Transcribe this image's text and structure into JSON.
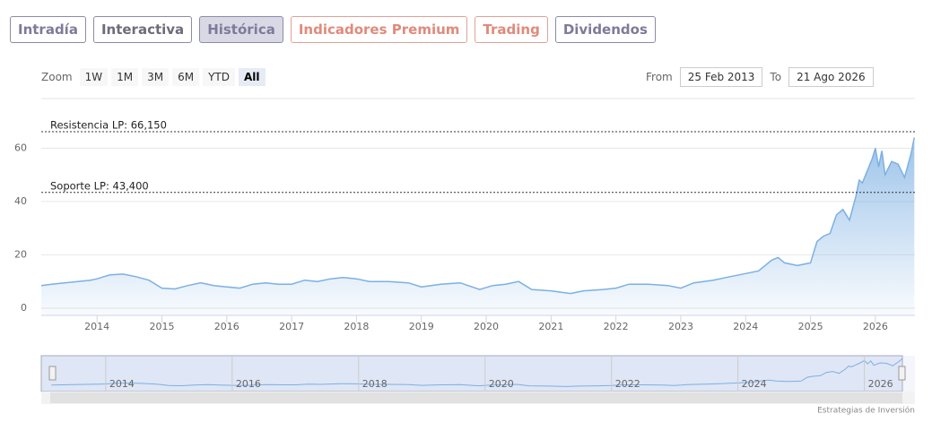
{
  "tabs": [
    "Intradía",
    "Interactiva",
    "Histórica",
    "Indicadores Premium",
    "Trading",
    "Dividendos"
  ],
  "zoom": {
    "label": "Zoom",
    "buttons": [
      "1W",
      "1M",
      "3M",
      "6M",
      "YTD",
      "All"
    ]
  },
  "range": {
    "from_label": "From",
    "from": "25 Feb 2013",
    "to_label": "To",
    "to": "21 Ago 2026"
  },
  "credits": "Estrategias de Inversión",
  "chart_data": {
    "type": "area",
    "x": [
      2013.14,
      2013.3,
      2013.5,
      2013.7,
      2013.9,
      2014.0,
      2014.2,
      2014.4,
      2014.6,
      2014.8,
      2015.0,
      2015.2,
      2015.4,
      2015.6,
      2015.8,
      2016.0,
      2016.2,
      2016.4,
      2016.6,
      2016.8,
      2017.0,
      2017.2,
      2017.4,
      2017.6,
      2017.8,
      2018.0,
      2018.2,
      2018.5,
      2018.8,
      2019.0,
      2019.3,
      2019.6,
      2019.9,
      2020.1,
      2020.3,
      2020.5,
      2020.7,
      2021.0,
      2021.3,
      2021.5,
      2021.8,
      2022.0,
      2022.2,
      2022.5,
      2022.8,
      2023.0,
      2023.2,
      2023.5,
      2023.7,
      2024.0,
      2024.2,
      2024.4,
      2024.5,
      2024.6,
      2024.8,
      2025.0,
      2025.1,
      2025.2,
      2025.3,
      2025.4,
      2025.5,
      2025.6,
      2025.7,
      2025.75,
      2025.8,
      2025.85,
      2025.95,
      2026.0,
      2026.05,
      2026.1,
      2026.15,
      2026.25,
      2026.35,
      2026.45,
      2026.55,
      2026.6
    ],
    "series": [
      {
        "color": "#7cb0e3",
        "values": [
          8.5,
          9,
          9.5,
          10,
          10.5,
          11,
          12.5,
          12.8,
          11.8,
          10.5,
          7.5,
          7.2,
          8.5,
          9.5,
          8.5,
          8,
          7.5,
          9,
          9.5,
          9,
          9,
          10.5,
          10,
          11,
          11.5,
          11,
          10,
          10,
          9.5,
          8,
          9,
          9.5,
          7,
          8.5,
          9,
          10,
          7,
          6.5,
          5.5,
          6.5,
          7,
          7.5,
          9,
          9,
          8.5,
          7.5,
          9.5,
          10.5,
          11.5,
          13,
          14,
          18,
          19,
          17,
          16,
          17,
          25,
          27,
          28,
          35,
          37,
          33,
          42,
          48,
          47,
          50,
          56,
          60,
          53,
          59,
          50,
          55,
          54,
          49,
          58,
          64
        ]
      }
    ],
    "xlim": [
      2013.14,
      2026.61
    ],
    "xticks": [
      2014,
      2015,
      2016,
      2017,
      2018,
      2019,
      2020,
      2021,
      2022,
      2023,
      2024,
      2025,
      2026
    ],
    "ylim": [
      -2.7,
      78.6
    ],
    "yticks": [
      0,
      20,
      40,
      60
    ],
    "grid": true,
    "plot_lines": [
      {
        "value": 66.15,
        "label": "Resistencia LP: 66,150"
      },
      {
        "value": 43.4,
        "label": "Soporte LP: 43,400"
      }
    ],
    "navigator": {
      "xlim": [
        2012.98,
        2026.8
      ],
      "ylim": [
        -5,
        70
      ],
      "xticks": [
        2014,
        2016,
        2018,
        2020,
        2022,
        2024,
        2026
      ]
    }
  }
}
